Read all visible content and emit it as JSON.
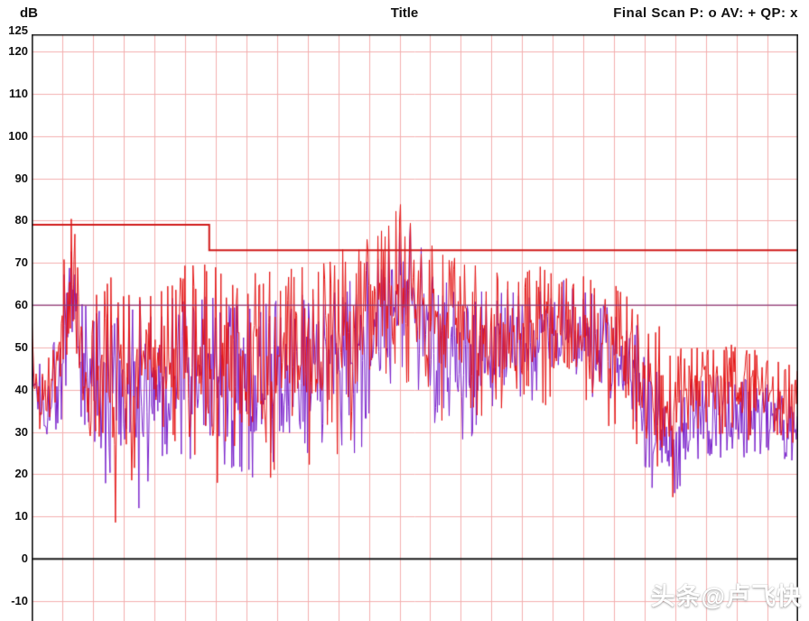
{
  "header": {
    "y_unit": "dB",
    "title": "Title",
    "legend": "Final Scan P: o  AV: +  QP: x"
  },
  "watermark": "头条@卢飞快",
  "chart_data": {
    "type": "line",
    "title": "Title",
    "ylabel": "dB",
    "ylim": [
      -15,
      125
    ],
    "yticks": [
      125,
      120,
      110,
      100,
      90,
      80,
      70,
      60,
      50,
      40,
      30,
      20,
      10,
      0,
      -10
    ],
    "x_axis": {
      "tick_labels_visible": false,
      "divisions": 25
    },
    "grid": {
      "show": true,
      "color": "#f3b0b0"
    },
    "zero_line_color": "#1a1a1a",
    "border_color": "#1a1a1a",
    "legend_entries": [
      {
        "trace": "P",
        "marker": "o"
      },
      {
        "trace": "AV",
        "marker": "+"
      },
      {
        "trace": "QP",
        "marker": "x"
      }
    ],
    "limit_lines": [
      {
        "name": "quasi-peak-limit",
        "color": "#d11a1a",
        "width": 2,
        "points": [
          [
            0,
            79
          ],
          [
            0.232,
            79
          ],
          [
            0.232,
            73
          ],
          [
            1,
            73
          ]
        ]
      },
      {
        "name": "average-limit",
        "color": "#8a3a7a",
        "width": 1.2,
        "points": [
          [
            0,
            60
          ],
          [
            1,
            60
          ]
        ]
      }
    ],
    "series": [
      {
        "name": "average-trace",
        "color": "#7a22cc",
        "envelope": [
          [
            0.0,
            28,
            56
          ],
          [
            0.02,
            25,
            40
          ],
          [
            0.05,
            35,
            80
          ],
          [
            0.065,
            28,
            62
          ],
          [
            0.085,
            22,
            60
          ],
          [
            0.11,
            5,
            60
          ],
          [
            0.13,
            4,
            62
          ],
          [
            0.16,
            20,
            62
          ],
          [
            0.2,
            20,
            63
          ],
          [
            0.24,
            15,
            62
          ],
          [
            0.28,
            15,
            60
          ],
          [
            0.33,
            17,
            62
          ],
          [
            0.38,
            18,
            64
          ],
          [
            0.43,
            22,
            68
          ],
          [
            0.47,
            35,
            80
          ],
          [
            0.495,
            38,
            82
          ],
          [
            0.52,
            30,
            68
          ],
          [
            0.56,
            26,
            64
          ],
          [
            0.6,
            30,
            64
          ],
          [
            0.65,
            35,
            66
          ],
          [
            0.7,
            36,
            66
          ],
          [
            0.74,
            32,
            62
          ],
          [
            0.78,
            25,
            58
          ],
          [
            0.82,
            12,
            48
          ],
          [
            0.84,
            10,
            42
          ],
          [
            0.87,
            22,
            45
          ],
          [
            0.91,
            22,
            44
          ],
          [
            0.95,
            23,
            42
          ],
          [
            1.0,
            22,
            40
          ]
        ]
      },
      {
        "name": "peak-trace",
        "color": "#e51515",
        "envelope": [
          [
            0.0,
            30,
            62
          ],
          [
            0.01,
            28,
            45
          ],
          [
            0.03,
            30,
            50
          ],
          [
            0.05,
            38,
            84
          ],
          [
            0.06,
            34,
            84
          ],
          [
            0.07,
            28,
            45
          ],
          [
            0.085,
            26,
            66
          ],
          [
            0.1,
            25,
            67
          ],
          [
            0.112,
            0,
            66
          ],
          [
            0.125,
            2,
            67
          ],
          [
            0.14,
            24,
            67
          ],
          [
            0.17,
            25,
            68
          ],
          [
            0.2,
            24,
            70
          ],
          [
            0.232,
            12,
            71
          ],
          [
            0.26,
            18,
            68
          ],
          [
            0.3,
            16,
            68
          ],
          [
            0.34,
            18,
            70
          ],
          [
            0.38,
            20,
            72
          ],
          [
            0.42,
            25,
            74
          ],
          [
            0.45,
            33,
            78
          ],
          [
            0.48,
            38,
            84
          ],
          [
            0.495,
            40,
            83
          ],
          [
            0.51,
            35,
            76
          ],
          [
            0.54,
            30,
            72
          ],
          [
            0.57,
            28,
            70
          ],
          [
            0.6,
            30,
            68
          ],
          [
            0.64,
            33,
            68
          ],
          [
            0.68,
            35,
            70
          ],
          [
            0.72,
            33,
            68
          ],
          [
            0.76,
            28,
            66
          ],
          [
            0.79,
            25,
            62
          ],
          [
            0.82,
            15,
            55
          ],
          [
            0.838,
            10,
            50
          ],
          [
            0.86,
            28,
            52
          ],
          [
            0.9,
            28,
            52
          ],
          [
            0.94,
            27,
            50
          ],
          [
            0.97,
            28,
            48
          ],
          [
            1.0,
            25,
            45
          ]
        ]
      }
    ]
  }
}
